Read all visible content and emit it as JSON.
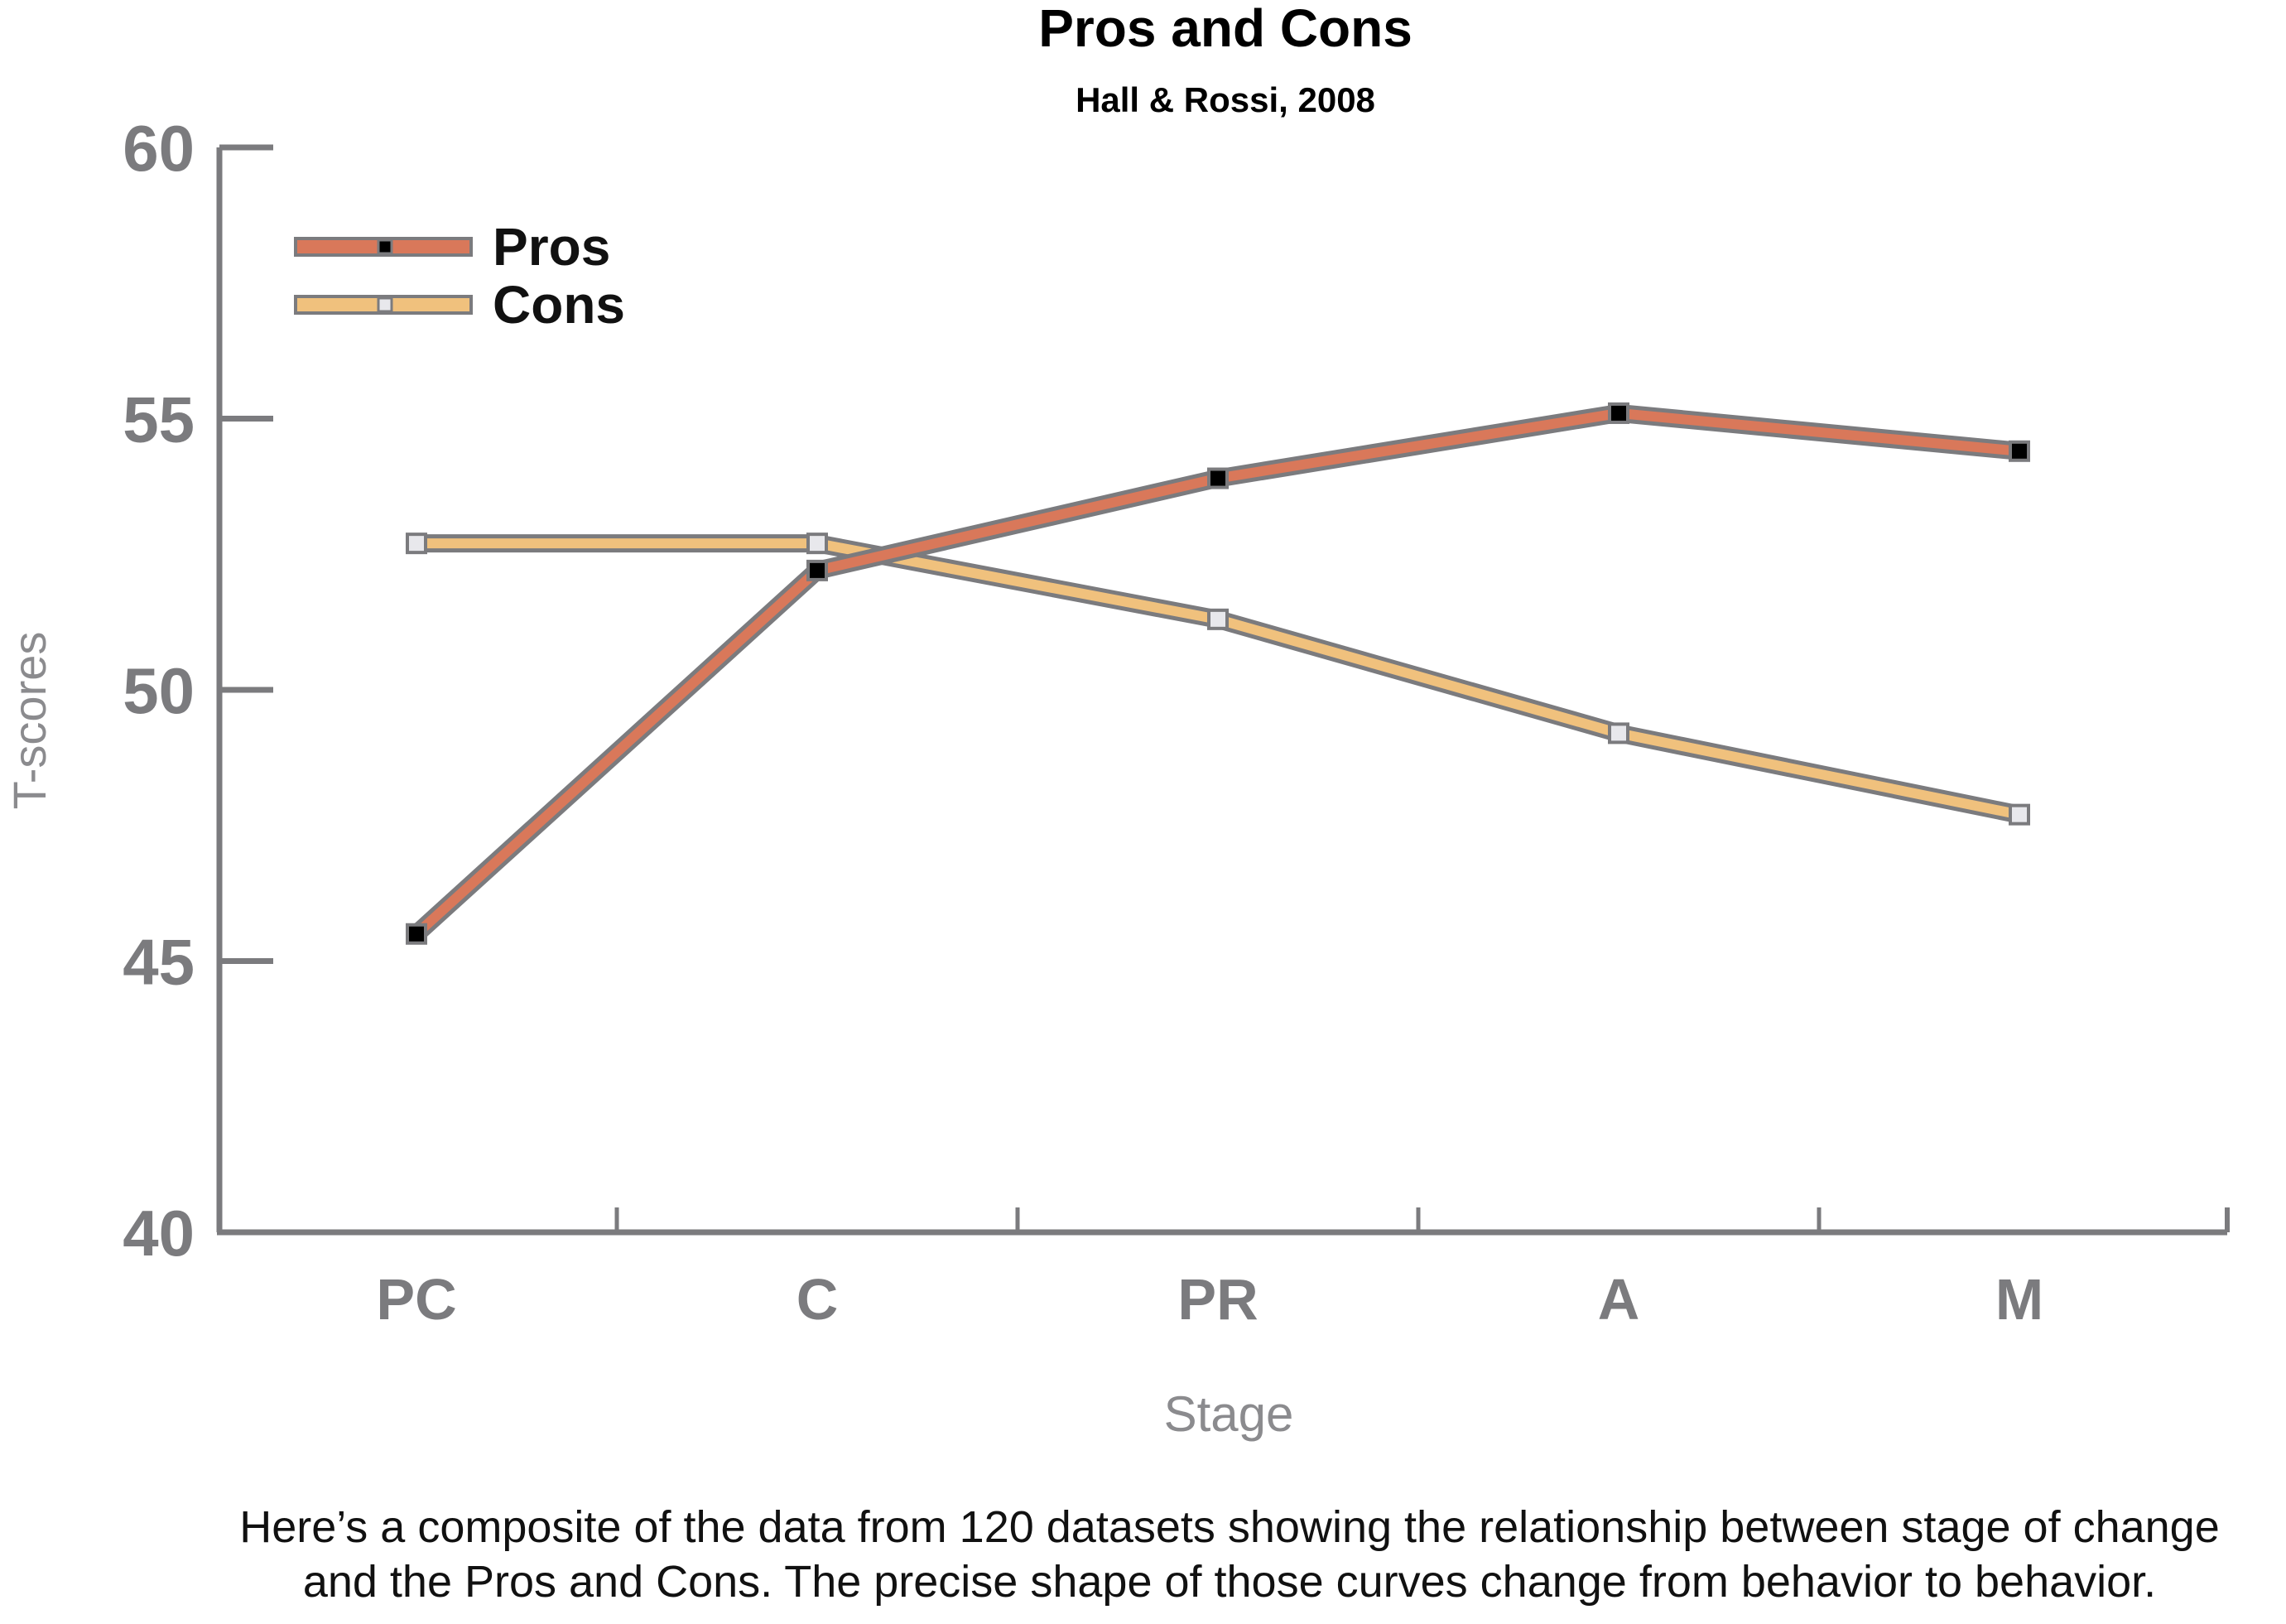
{
  "chart_data": {
    "type": "line",
    "title": "Pros and Cons",
    "subtitle": "Hall & Rossi, 2008",
    "xlabel": "Stage",
    "ylabel": "T-scores",
    "categories": [
      "PC",
      "C",
      "PR",
      "A",
      "M"
    ],
    "ylim": [
      40,
      60
    ],
    "yticks": [
      40,
      45,
      50,
      55,
      60
    ],
    "grid": false,
    "legend_position": "top-left",
    "series": [
      {
        "name": "Pros",
        "values": [
          45.5,
          52.2,
          53.9,
          55.1,
          54.4
        ],
        "color": "#d9785a",
        "marker_color": "#000000"
      },
      {
        "name": "Cons",
        "values": [
          52.7,
          52.7,
          51.3,
          49.2,
          47.7
        ],
        "color": "#f0c17d",
        "marker_color": "#e8e8ec"
      }
    ]
  },
  "caption": {
    "line1": "Here’s a composite of the data from 120 datasets showing the relationship between stage of change",
    "line2": "and the Pros and Cons. The precise shape of those curves change from behavior to behavior."
  },
  "colors": {
    "axis": "#7b7b7e",
    "line_outline": "#7b7b7e"
  }
}
